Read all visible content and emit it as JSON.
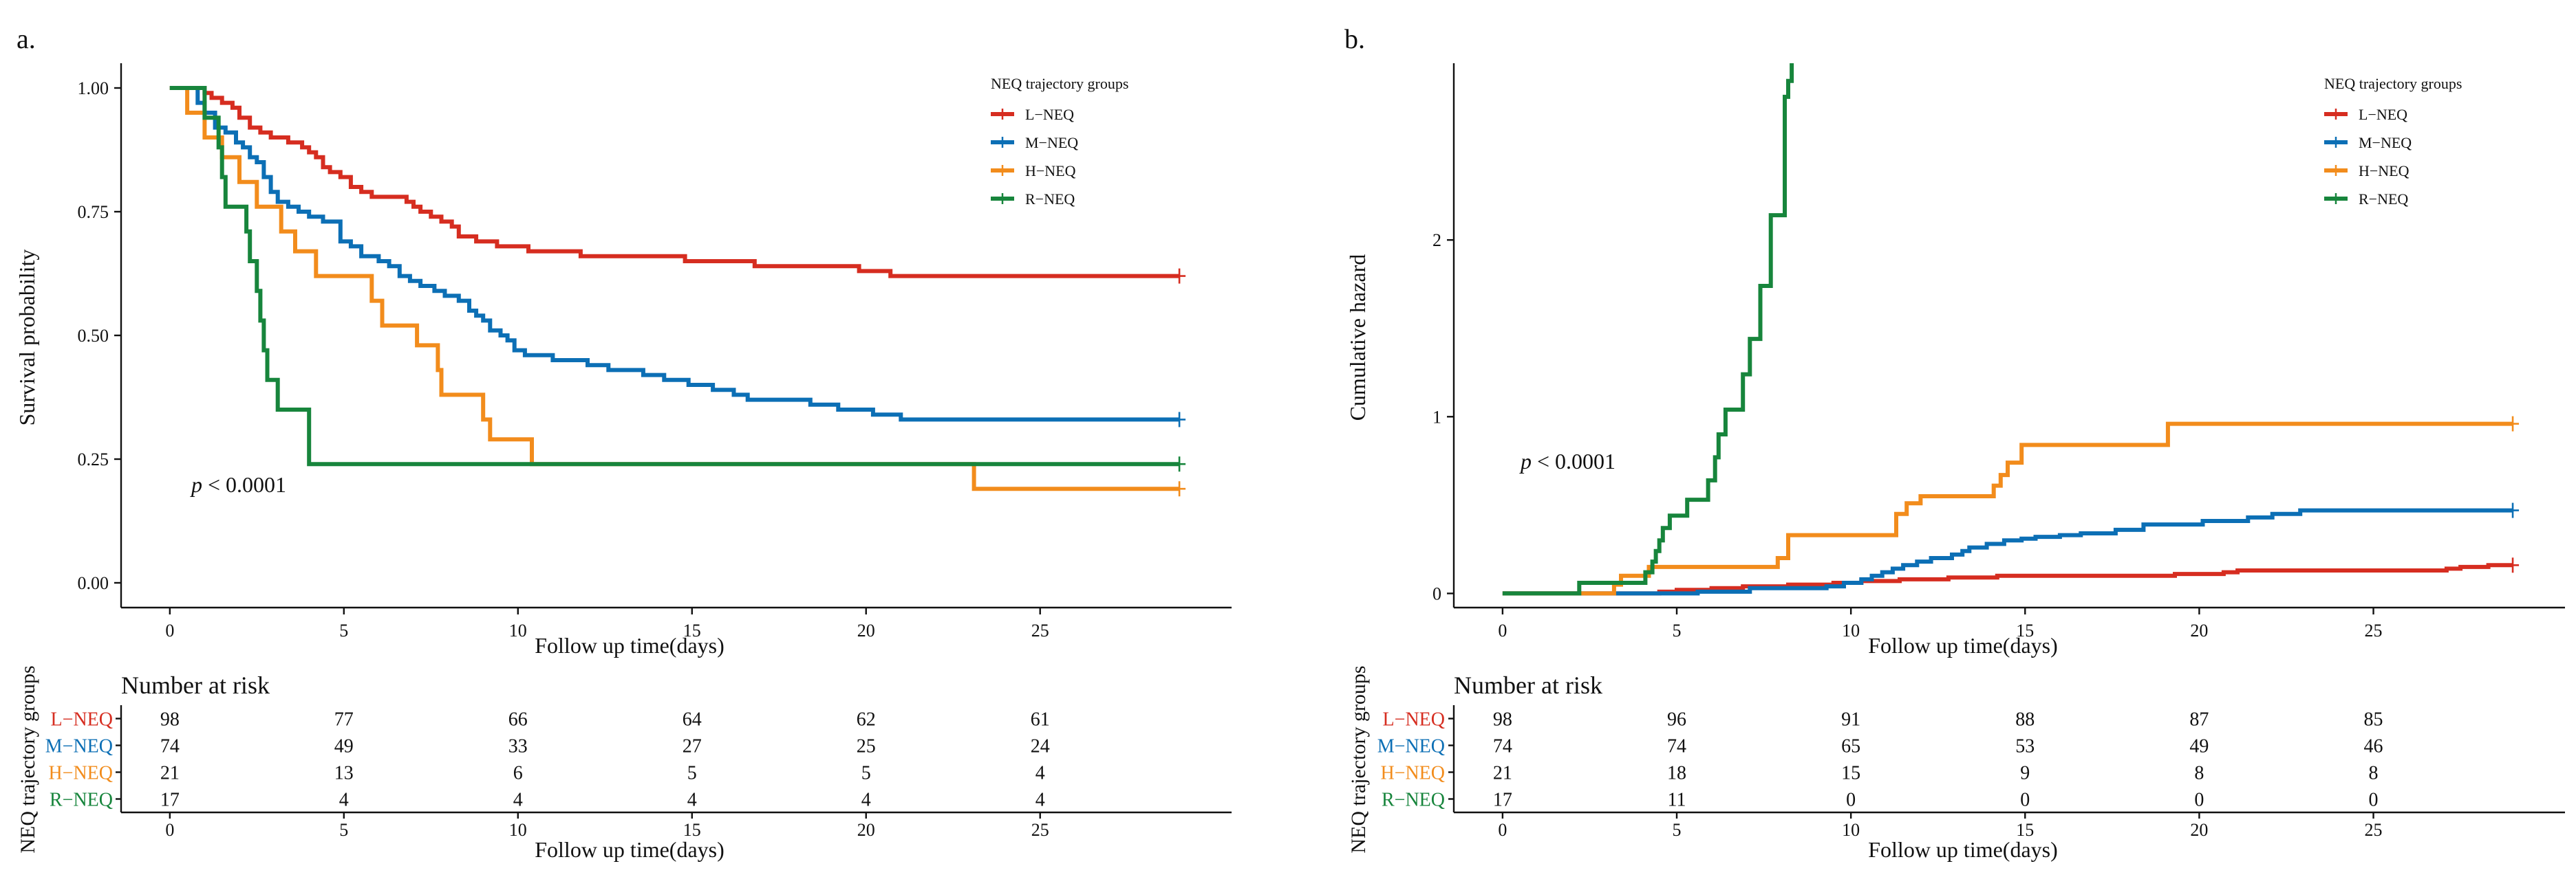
{
  "chart_data": [
    {
      "type": "line",
      "panel_label": "a.",
      "ylabel": "Survival probability",
      "xlabel": "Follow up time(days)",
      "xlim": [
        -1.4,
        30.5
      ],
      "ylim": [
        -0.05,
        1.05
      ],
      "xticks": [
        0,
        5,
        10,
        15,
        20,
        25
      ],
      "yticks": [
        0,
        0.25,
        0.5,
        0.75,
        1
      ],
      "ytick_labels": [
        "0.00",
        "0.25",
        "0.50",
        "0.75",
        "1.00"
      ],
      "grid": false,
      "annotation": {
        "text_italic": "p",
        "text": " < 0.0001",
        "x": 0.6,
        "y": 0.19
      },
      "legend": {
        "title": "NEQ trajectory groups",
        "position": "top-right"
      },
      "series": [
        {
          "name": "L−NEQ",
          "color": "#d62d20",
          "points": [
            [
              0,
              1
            ],
            [
              1,
              0.99
            ],
            [
              1.2,
              0.98
            ],
            [
              1.5,
              0.97
            ],
            [
              1.8,
              0.96
            ],
            [
              2.0,
              0.94
            ],
            [
              2.3,
              0.92
            ],
            [
              2.6,
              0.91
            ],
            [
              2.9,
              0.9
            ],
            [
              3.4,
              0.89
            ],
            [
              3.8,
              0.88
            ],
            [
              4.0,
              0.87
            ],
            [
              4.2,
              0.86
            ],
            [
              4.4,
              0.84
            ],
            [
              4.6,
              0.83
            ],
            [
              4.9,
              0.82
            ],
            [
              5.2,
              0.8
            ],
            [
              5.5,
              0.79
            ],
            [
              5.8,
              0.78
            ],
            [
              6.8,
              0.77
            ],
            [
              7.0,
              0.76
            ],
            [
              7.2,
              0.75
            ],
            [
              7.5,
              0.74
            ],
            [
              7.8,
              0.73
            ],
            [
              8.1,
              0.72
            ],
            [
              8.3,
              0.7
            ],
            [
              8.8,
              0.69
            ],
            [
              9.4,
              0.68
            ],
            [
              10.3,
              0.67
            ],
            [
              11.3,
              0.67
            ],
            [
              11.8,
              0.66
            ],
            [
              14.8,
              0.65
            ],
            [
              16.0,
              0.65
            ],
            [
              16.8,
              0.64
            ],
            [
              19.8,
              0.63
            ],
            [
              20.7,
              0.62
            ],
            [
              29.0,
              0.62
            ]
          ],
          "censor_at": 29.0,
          "censor_y": 0.62
        },
        {
          "name": "M−NEQ",
          "color": "#0c6fb5",
          "points": [
            [
              0,
              1
            ],
            [
              0.8,
              0.97
            ],
            [
              1.0,
              0.95
            ],
            [
              1.3,
              0.92
            ],
            [
              1.6,
              0.91
            ],
            [
              1.9,
              0.89
            ],
            [
              2.1,
              0.88
            ],
            [
              2.3,
              0.86
            ],
            [
              2.5,
              0.85
            ],
            [
              2.7,
              0.82
            ],
            [
              2.9,
              0.79
            ],
            [
              3.1,
              0.77
            ],
            [
              3.4,
              0.76
            ],
            [
              3.7,
              0.75
            ],
            [
              4.0,
              0.74
            ],
            [
              4.4,
              0.73
            ],
            [
              4.9,
              0.69
            ],
            [
              5.2,
              0.68
            ],
            [
              5.5,
              0.66
            ],
            [
              6.0,
              0.65
            ],
            [
              6.3,
              0.64
            ],
            [
              6.6,
              0.62
            ],
            [
              6.9,
              0.61
            ],
            [
              7.2,
              0.6
            ],
            [
              7.6,
              0.59
            ],
            [
              7.9,
              0.58
            ],
            [
              8.3,
              0.57
            ],
            [
              8.6,
              0.55
            ],
            [
              8.8,
              0.54
            ],
            [
              9.0,
              0.53
            ],
            [
              9.2,
              0.51
            ],
            [
              9.5,
              0.5
            ],
            [
              9.7,
              0.49
            ],
            [
              9.9,
              0.47
            ],
            [
              10.2,
              0.46
            ],
            [
              11.0,
              0.45
            ],
            [
              12.0,
              0.44
            ],
            [
              12.6,
              0.43
            ],
            [
              13.6,
              0.42
            ],
            [
              14.2,
              0.41
            ],
            [
              14.9,
              0.4
            ],
            [
              15.6,
              0.39
            ],
            [
              16.2,
              0.38
            ],
            [
              16.6,
              0.37
            ],
            [
              18.4,
              0.36
            ],
            [
              19.2,
              0.35
            ],
            [
              20.2,
              0.34
            ],
            [
              21.0,
              0.33
            ],
            [
              29.0,
              0.33
            ]
          ],
          "censor_at": 29.0,
          "censor_y": 0.33
        },
        {
          "name": "H−NEQ",
          "color": "#f28c1c",
          "points": [
            [
              0,
              1
            ],
            [
              0.5,
              0.95
            ],
            [
              1.0,
              0.9
            ],
            [
              1.5,
              0.86
            ],
            [
              2.0,
              0.81
            ],
            [
              2.5,
              0.76
            ],
            [
              3.2,
              0.71
            ],
            [
              3.6,
              0.67
            ],
            [
              4.2,
              0.62
            ],
            [
              5.8,
              0.57
            ],
            [
              6.1,
              0.52
            ],
            [
              7.1,
              0.48
            ],
            [
              7.7,
              0.43
            ],
            [
              7.8,
              0.38
            ],
            [
              9.0,
              0.33
            ],
            [
              9.2,
              0.29
            ],
            [
              10.4,
              0.24
            ],
            [
              23.0,
              0.24
            ],
            [
              23.1,
              0.19
            ],
            [
              29.0,
              0.19
            ]
          ],
          "censor_at": 29.0,
          "censor_y": 0.19
        },
        {
          "name": "R−NEQ",
          "color": "#17853c",
          "points": [
            [
              0,
              1
            ],
            [
              1.0,
              0.94
            ],
            [
              1.4,
              0.88
            ],
            [
              1.5,
              0.82
            ],
            [
              1.6,
              0.76
            ],
            [
              2.2,
              0.71
            ],
            [
              2.3,
              0.65
            ],
            [
              2.5,
              0.59
            ],
            [
              2.6,
              0.53
            ],
            [
              2.7,
              0.47
            ],
            [
              2.8,
              0.41
            ],
            [
              3.1,
              0.35
            ],
            [
              4.0,
              0.24
            ],
            [
              29.0,
              0.24
            ]
          ],
          "censor_at": 29.0,
          "censor_y": 0.24
        }
      ]
    },
    {
      "type": "line",
      "panel_label": "b.",
      "ylabel": "Cumulative hazard",
      "xlabel": "Follow up time(days)",
      "xlim": [
        -1.4,
        30.5
      ],
      "ylim": [
        -0.08,
        3.0
      ],
      "xticks": [
        0,
        5,
        10,
        15,
        20,
        25
      ],
      "yticks": [
        0,
        1,
        2
      ],
      "ytick_labels": [
        "0",
        "1",
        "2"
      ],
      "grid": false,
      "annotation": {
        "text_italic": "p",
        "text": " < 0.0001",
        "x": 0.5,
        "y": 0.66
      },
      "legend": {
        "title": "NEQ trajectory groups",
        "position": "top-right"
      },
      "series": [
        {
          "name": "L−NEQ",
          "color": "#d62d20",
          "points": [
            [
              0,
              0
            ],
            [
              3.9,
              0
            ],
            [
              4.5,
              0.01
            ],
            [
              5.0,
              0.02
            ],
            [
              6.0,
              0.03
            ],
            [
              6.9,
              0.04
            ],
            [
              8.2,
              0.05
            ],
            [
              9.5,
              0.06
            ],
            [
              10.3,
              0.07
            ],
            [
              11.4,
              0.08
            ],
            [
              12.8,
              0.09
            ],
            [
              14.2,
              0.1
            ],
            [
              19.3,
              0.11
            ],
            [
              20.7,
              0.12
            ],
            [
              21.1,
              0.13
            ],
            [
              27.1,
              0.14
            ],
            [
              27.5,
              0.15
            ],
            [
              28.3,
              0.16
            ],
            [
              29.0,
              0.16
            ]
          ],
          "censor_at": 29.0,
          "censor_y": 0.16
        },
        {
          "name": "M−NEQ",
          "color": "#0c6fb5",
          "points": [
            [
              0,
              0
            ],
            [
              4.9,
              0
            ],
            [
              5.6,
              0.01
            ],
            [
              7.1,
              0.03
            ],
            [
              9.3,
              0.04
            ],
            [
              9.8,
              0.06
            ],
            [
              10.3,
              0.08
            ],
            [
              10.6,
              0.1
            ],
            [
              10.9,
              0.12
            ],
            [
              11.2,
              0.14
            ],
            [
              11.5,
              0.16
            ],
            [
              11.9,
              0.18
            ],
            [
              12.3,
              0.2
            ],
            [
              12.9,
              0.22
            ],
            [
              13.2,
              0.24
            ],
            [
              13.4,
              0.26
            ],
            [
              13.9,
              0.28
            ],
            [
              14.4,
              0.3
            ],
            [
              14.9,
              0.31
            ],
            [
              15.3,
              0.32
            ],
            [
              16.0,
              0.33
            ],
            [
              16.6,
              0.34
            ],
            [
              17.6,
              0.36
            ],
            [
              18.4,
              0.39
            ],
            [
              20.1,
              0.41
            ],
            [
              21.4,
              0.43
            ],
            [
              22.1,
              0.45
            ],
            [
              22.9,
              0.47
            ],
            [
              29.0,
              0.47
            ]
          ],
          "censor_at": 29.0,
          "censor_y": 0.47
        },
        {
          "name": "H−NEQ",
          "color": "#f28c1c",
          "points": [
            [
              0,
              0
            ],
            [
              2.6,
              0
            ],
            [
              3.2,
              0.05
            ],
            [
              3.4,
              0.1
            ],
            [
              4.2,
              0.15
            ],
            [
              7.9,
              0.2
            ],
            [
              8.2,
              0.33
            ],
            [
              11.3,
              0.45
            ],
            [
              11.6,
              0.51
            ],
            [
              12.0,
              0.55
            ],
            [
              14.1,
              0.61
            ],
            [
              14.3,
              0.67
            ],
            [
              14.5,
              0.74
            ],
            [
              14.9,
              0.84
            ],
            [
              19.1,
              0.96
            ],
            [
              29.0,
              0.96
            ]
          ],
          "censor_at": 29.0,
          "censor_y": 0.96
        },
        {
          "name": "R−NEQ",
          "color": "#17853c",
          "points": [
            [
              0,
              0
            ],
            [
              2.2,
              0.06
            ],
            [
              4.1,
              0.12
            ],
            [
              4.3,
              0.18
            ],
            [
              4.4,
              0.24
            ],
            [
              4.5,
              0.3
            ],
            [
              4.6,
              0.37
            ],
            [
              4.8,
              0.44
            ],
            [
              5.3,
              0.53
            ],
            [
              5.9,
              0.64
            ],
            [
              6.1,
              0.77
            ],
            [
              6.2,
              0.9
            ],
            [
              6.4,
              1.04
            ],
            [
              6.9,
              1.24
            ],
            [
              7.1,
              1.44
            ],
            [
              7.4,
              1.74
            ],
            [
              7.7,
              2.14
            ],
            [
              8.1,
              2.81
            ],
            [
              8.2,
              2.9
            ],
            [
              8.3,
              3.0
            ]
          ]
        }
      ]
    }
  ],
  "risk_tables": [
    {
      "title": "Number at risk",
      "ylabel": "NEQ trajectory groups",
      "xlabel": "Follow up time(days)",
      "xticks": [
        "0",
        "5",
        "10",
        "15",
        "20",
        "25"
      ],
      "rows": [
        {
          "label": "L−NEQ",
          "color": "#d62d20",
          "values": [
            "98",
            "77",
            "66",
            "64",
            "62",
            "61"
          ]
        },
        {
          "label": "M−NEQ",
          "color": "#0c6fb5",
          "values": [
            "74",
            "49",
            "33",
            "27",
            "25",
            "24"
          ]
        },
        {
          "label": "H−NEQ",
          "color": "#f28c1c",
          "values": [
            "21",
            "13",
            "6",
            "5",
            "5",
            "4"
          ]
        },
        {
          "label": "R−NEQ",
          "color": "#17853c",
          "values": [
            "17",
            "4",
            "4",
            "4",
            "4",
            "4"
          ]
        }
      ]
    },
    {
      "title": "Number at risk",
      "ylabel": "NEQ trajectory groups",
      "xlabel": "Follow up time(days)",
      "xticks": [
        "0",
        "5",
        "10",
        "15",
        "20",
        "25"
      ],
      "rows": [
        {
          "label": "L−NEQ",
          "color": "#d62d20",
          "values": [
            "98",
            "96",
            "91",
            "88",
            "87",
            "85"
          ]
        },
        {
          "label": "M−NEQ",
          "color": "#0c6fb5",
          "values": [
            "74",
            "74",
            "65",
            "53",
            "49",
            "46"
          ]
        },
        {
          "label": "H−NEQ",
          "color": "#f28c1c",
          "values": [
            "21",
            "18",
            "15",
            "9",
            "8",
            "8"
          ]
        },
        {
          "label": "R−NEQ",
          "color": "#17853c",
          "values": [
            "17",
            "11",
            "0",
            "0",
            "0",
            "0"
          ]
        }
      ]
    }
  ]
}
